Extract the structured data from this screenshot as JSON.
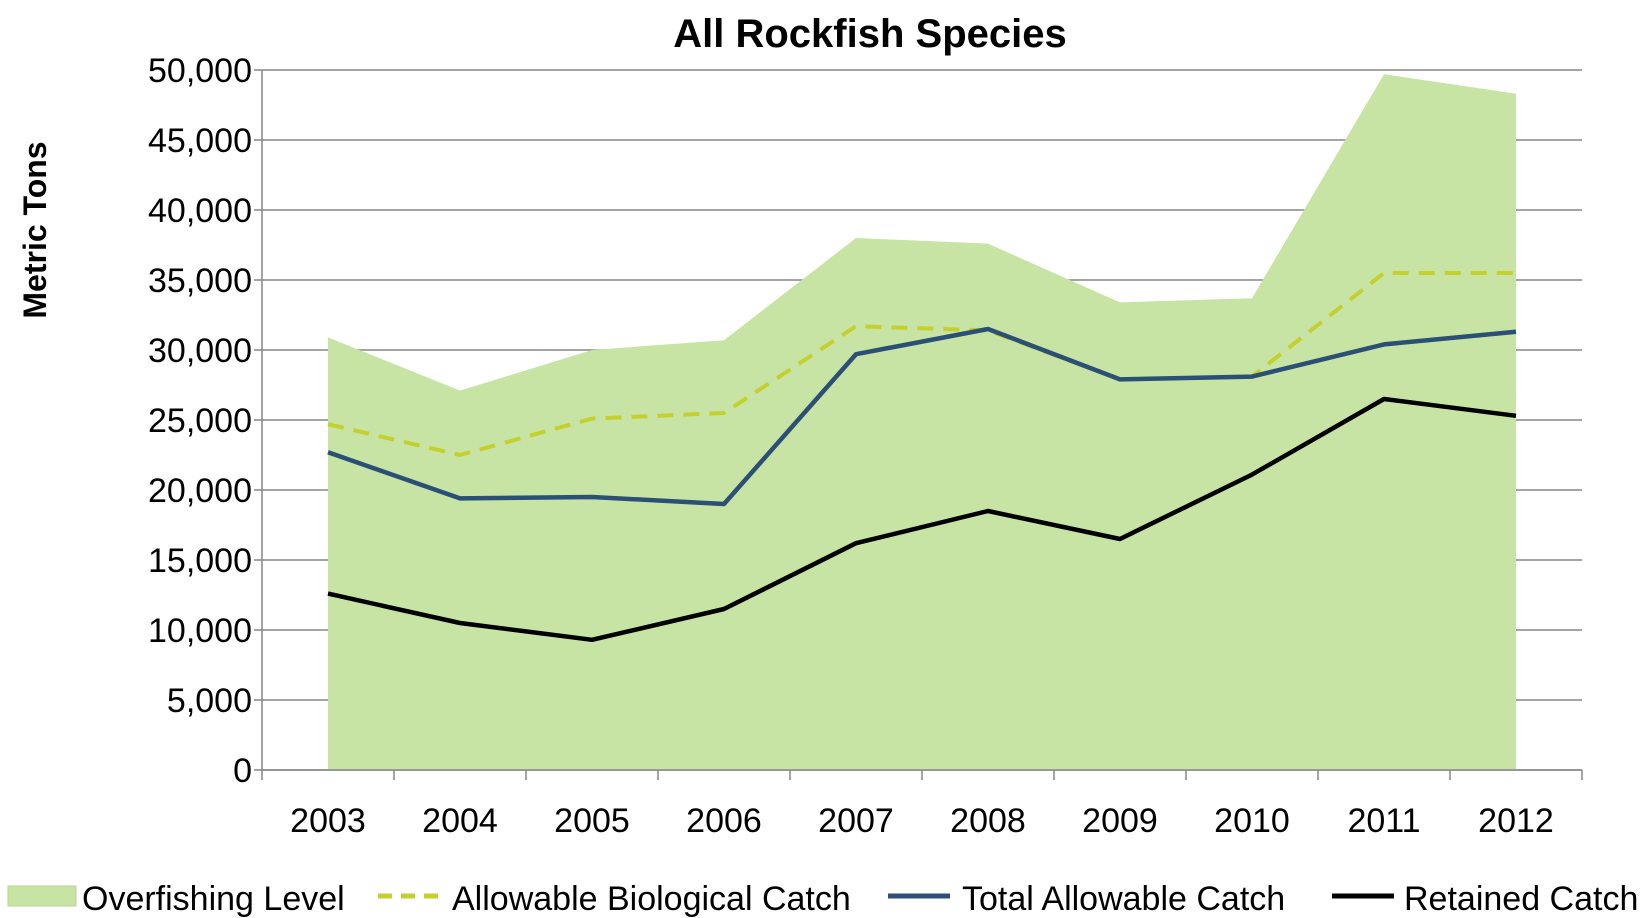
{
  "chart_data": {
    "type": "line",
    "title": "All Rockfish Species",
    "xlabel": "",
    "ylabel": "Metric Tons",
    "categories": [
      "2003",
      "2004",
      "2005",
      "2006",
      "2007",
      "2008",
      "2009",
      "2010",
      "2011",
      "2012"
    ],
    "ylim": [
      0,
      50000
    ],
    "yticks": [
      "0",
      "5,000",
      "10,000",
      "15,000",
      "20,000",
      "25,000",
      "30,000",
      "35,000",
      "40,000",
      "45,000",
      "50,000"
    ],
    "grid": true,
    "legend_position": "bottom",
    "series": [
      {
        "name": "Overfishing Level",
        "kind": "area",
        "color": "#c7e4a4",
        "values": [
          30900,
          27100,
          30000,
          30700,
          38000,
          37600,
          33400,
          33700,
          49700,
          48300
        ]
      },
      {
        "name": "Allowable Biological Catch",
        "kind": "dashed-line",
        "color": "#c3d02e",
        "values": [
          24700,
          22500,
          25100,
          25500,
          31700,
          31400,
          27900,
          28100,
          35500,
          35500
        ]
      },
      {
        "name": "Total Allowable Catch",
        "kind": "line",
        "color": "#2b4f75",
        "values": [
          22700,
          19400,
          19500,
          19000,
          29700,
          31500,
          27900,
          28100,
          30400,
          31300
        ]
      },
      {
        "name": "Retained Catch",
        "kind": "line",
        "color": "#000000",
        "values": [
          12600,
          10500,
          9300,
          11500,
          16200,
          18500,
          16500,
          21100,
          26500,
          25300
        ]
      }
    ]
  }
}
